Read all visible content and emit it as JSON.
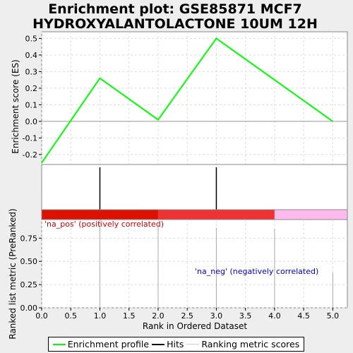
{
  "title_lines": [
    "Enrichment plot: GSE85871 MCF7",
    "HYDROXYALANTOLACTONE 10UM 12H"
  ],
  "colors": {
    "es_line": "#00ff00",
    "hits": "#000000",
    "pos_band_dark": "#dd1100",
    "pos_band": "#ee3333",
    "neg_band": "#ffbbee",
    "pos_text": "#cc0000",
    "neg_text": "#0000cc",
    "metric_bars": "#aaaaaa",
    "grid": "#dddddd"
  },
  "chart_data": {
    "type": "line",
    "xlabel": "Rank in Ordered Dataset",
    "x_ticks": [
      "0.0",
      "0.5",
      "1.0",
      "1.5",
      "2.0",
      "2.5",
      "3.0",
      "3.5",
      "4.0",
      "4.5",
      "5.0"
    ],
    "xlim": [
      0,
      5.25
    ],
    "es_panel": {
      "ylabel": "Enrichment score (ES)",
      "ylim": [
        -0.26,
        0.54
      ],
      "y_ticks": [
        "-0.2",
        "-0.1",
        "0.0",
        "0.1",
        "0.2",
        "0.3",
        "0.4",
        "0.5"
      ],
      "series": [
        {
          "name": "Enrichment profile",
          "x": [
            0,
            1,
            2,
            3,
            5
          ],
          "y": [
            -0.25,
            0.26,
            0.01,
            0.5,
            0.0
          ]
        }
      ]
    },
    "hits": [
      1,
      3
    ],
    "rank_bands": [
      {
        "from": 0,
        "to": 2,
        "class": "pos_dark"
      },
      {
        "from": 2,
        "to": 4,
        "class": "pos"
      },
      {
        "from": 4,
        "to": 5.25,
        "class": "neg"
      }
    ],
    "metric_panel": {
      "ylabel": "Ranked list metric (PreRanked)",
      "ylim": [
        0,
        0.95
      ],
      "y_ticks": [
        "0.00",
        "0.25",
        "0.50",
        "0.75"
      ],
      "bars": [
        {
          "x": 1,
          "value": 1.0
        },
        {
          "x": 2,
          "value": 0.88
        },
        {
          "x": 3,
          "value": 0.86
        },
        {
          "x": 4,
          "value": 0.85
        },
        {
          "x": 5,
          "value": 0.38
        }
      ]
    },
    "annotations": {
      "pos": "'na_pos' (positively correlated)",
      "neg": "'na_neg' (negatively correlated)"
    }
  },
  "legend": {
    "items": [
      {
        "label": "Enrichment profile",
        "color": "#00ff00",
        "width": 2
      },
      {
        "label": "Hits",
        "color": "#000000",
        "width": 2
      },
      {
        "label": "Ranking metric scores",
        "color": "#cccccc",
        "width": 1
      }
    ]
  }
}
